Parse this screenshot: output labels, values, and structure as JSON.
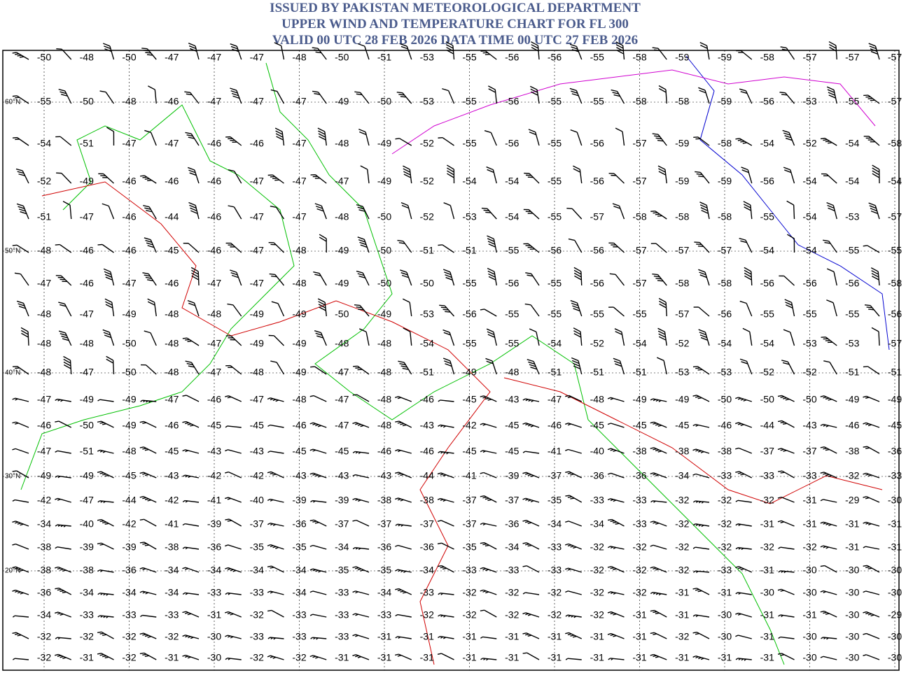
{
  "header": {
    "lines": [
      "ISSUED BY PAKISTAN METEOROLOGICAL DEPARTMENT",
      "UPPER WIND AND TEMPERATURE CHART FOR FL 300",
      "VALID 00 UTC 28 FEB 2026 DATA TIME 00 UTC 27 FEB 2026"
    ]
  },
  "latitudes": [
    {
      "row": 1,
      "label": "60°N"
    },
    {
      "row": 5,
      "label": "50°N"
    },
    {
      "row": 9,
      "label": "40°N"
    },
    {
      "row": 13,
      "label": "30°N"
    },
    {
      "row": 17,
      "label": "20°N"
    }
  ],
  "temperatures": [
    [
      -50,
      -48,
      -50,
      -47,
      -47,
      -47,
      -48,
      -50,
      -51,
      -53,
      -55,
      -56,
      -56,
      -55,
      -58,
      -59,
      -59,
      -58,
      -57,
      -57,
      -57
    ],
    [
      -55,
      -50,
      -48,
      -46,
      -47,
      -47,
      -47,
      -49,
      -50,
      -53,
      -55,
      -56,
      -55,
      -55,
      -58,
      -58,
      -59,
      -56,
      -53,
      -55,
      -57
    ],
    [
      -54,
      -51,
      -47,
      -47,
      -46,
      -46,
      -47,
      -48,
      -49,
      -52,
      -55,
      -56,
      -55,
      -56,
      -57,
      -59,
      -58,
      -54,
      -52,
      -54,
      -58
    ],
    [
      -52,
      -49,
      -46,
      -46,
      -46,
      -47,
      -47,
      -47,
      -49,
      -52,
      -54,
      -54,
      -55,
      -56,
      -57,
      -59,
      -59,
      -56,
      -54,
      -54,
      -54
    ],
    [
      -51,
      -47,
      -46,
      -44,
      -46,
      -47,
      -47,
      -48,
      -50,
      -52,
      -53,
      -54,
      -55,
      -57,
      -58,
      -58,
      -58,
      -55,
      -54,
      -53,
      -57
    ],
    [
      -48,
      -46,
      -46,
      -45,
      -46,
      -47,
      -48,
      -49,
      -50,
      -51,
      -51,
      -55,
      -56,
      -56,
      -57,
      -57,
      -57,
      -54,
      -54,
      -55,
      -55
    ],
    [
      -47,
      -46,
      -47,
      -46,
      -47,
      -47,
      -48,
      -49,
      -50,
      -50,
      -55,
      -56,
      -55,
      -56,
      -57,
      -58,
      -58,
      -56,
      -56,
      -56,
      -58
    ],
    [
      -48,
      -47,
      -49,
      -48,
      -48,
      -49,
      -49,
      -50,
      -49,
      -53,
      -56,
      -55,
      -55,
      -55,
      -55,
      -57,
      -56,
      -55,
      -55,
      -55,
      -56
    ],
    [
      -48,
      -48,
      -50,
      -48,
      -47,
      -49,
      -49,
      -48,
      -48,
      -54,
      -55,
      -55,
      -54,
      -52,
      -54,
      -52,
      -54,
      -54,
      -53,
      -53,
      -57
    ],
    [
      -48,
      -47,
      -50,
      -48,
      -47,
      -48,
      -49,
      -47,
      -48,
      -51,
      -49,
      -48,
      -51,
      -51,
      -51,
      -53,
      -53,
      -52,
      -52,
      -51,
      -51
    ],
    [
      -47,
      -49,
      -49,
      -47,
      -46,
      -47,
      -48,
      -47,
      -48,
      -46,
      -45,
      -43,
      -47,
      -48,
      -49,
      -49,
      -50,
      -50,
      -50,
      -49,
      -49
    ],
    [
      -46,
      -50,
      -49,
      -46,
      -45,
      -45,
      -46,
      -47,
      -48,
      -43,
      -42,
      -45,
      -46,
      -45,
      -45,
      -45,
      -46,
      -44,
      -43,
      -46,
      -45
    ],
    [
      -47,
      -51,
      -48,
      -45,
      -43,
      -43,
      -45,
      -45,
      -46,
      -46,
      -45,
      -45,
      -41,
      -40,
      -38,
      -38,
      -38,
      -37,
      -37,
      -38,
      -36
    ],
    [
      -49,
      -49,
      -45,
      -43,
      -42,
      -42,
      -43,
      -43,
      -43,
      -44,
      -41,
      -39,
      -37,
      -36,
      -36,
      -34,
      -33,
      -33,
      -33,
      -32,
      -33
    ],
    [
      -42,
      -47,
      -44,
      -42,
      -41,
      -40,
      -39,
      -39,
      -38,
      -38,
      -37,
      -37,
      -35,
      -33,
      -33,
      -32,
      -32,
      -32,
      -31,
      -29,
      -30
    ],
    [
      -34,
      -40,
      -42,
      -41,
      -39,
      -37,
      -36,
      -37,
      -37,
      -37,
      -37,
      -36,
      -34,
      -34,
      -33,
      -32,
      -32,
      -31,
      -31,
      -31,
      -31
    ],
    [
      -38,
      -39,
      -39,
      -38,
      -36,
      -35,
      -35,
      -34,
      -36,
      -36,
      -35,
      -34,
      -33,
      -32,
      -32,
      -32,
      -32,
      -32,
      -32,
      -31,
      -31
    ],
    [
      -38,
      -38,
      -36,
      -34,
      -34,
      -34,
      -34,
      -35,
      -35,
      -34,
      -33,
      -33,
      -33,
      -32,
      -32,
      -32,
      -33,
      -31,
      -30,
      -30,
      -30
    ],
    [
      -36,
      -34,
      -34,
      -34,
      -33,
      -33,
      -34,
      -33,
      -34,
      -33,
      -32,
      -32,
      -32,
      -32,
      -32,
      -31,
      -31,
      -30,
      -30,
      -30,
      -30
    ],
    [
      -34,
      -33,
      -33,
      -33,
      -31,
      -32,
      -33,
      -33,
      -33,
      -32,
      -32,
      -32,
      -32,
      -32,
      -31,
      -31,
      -30,
      -31,
      -31,
      -30,
      -29
    ],
    [
      -32,
      -32,
      -32,
      -32,
      -30,
      -33,
      -33,
      -33,
      -31,
      -31,
      -31,
      -31,
      -31,
      -31,
      -31,
      -32,
      -30,
      -31,
      -30,
      -30,
      -30
    ],
    [
      -32,
      -31,
      -32,
      -31,
      -30,
      -32,
      -32,
      -31,
      -31,
      -31,
      -31,
      -31,
      -31,
      -31,
      -31,
      -31,
      -31,
      -31,
      -30,
      -30,
      -30
    ]
  ]
}
